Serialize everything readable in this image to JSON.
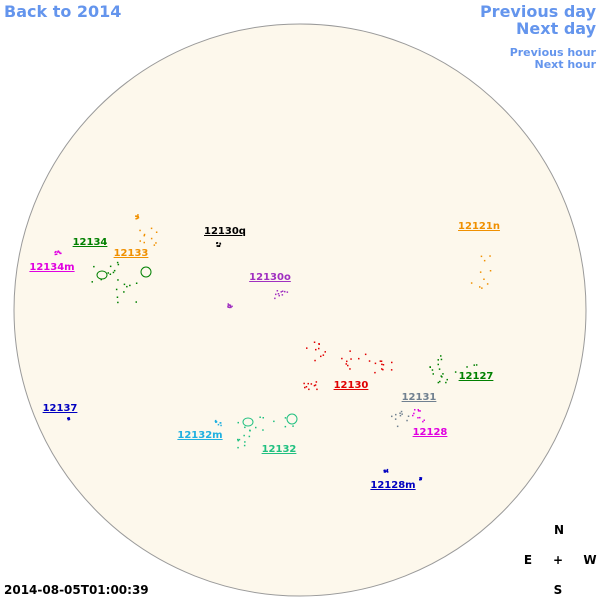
{
  "navigation": {
    "back": "Back to 2014",
    "previous_day": "Previous day",
    "next_day": "Next day",
    "previous_hour": "Previous hour",
    "next_hour": "Next hour"
  },
  "regions": [
    {
      "label": "12134",
      "color": "#008000"
    },
    {
      "label": "12134m",
      "color": "#e000e0"
    },
    {
      "label": "12133",
      "color": "#f09000"
    },
    {
      "label": "12130q",
      "color": "#000000"
    },
    {
      "label": "12130o",
      "color": "#a030c0"
    },
    {
      "label": "12121n",
      "color": "#f09000"
    },
    {
      "label": "12130",
      "color": "#e00000"
    },
    {
      "label": "12127",
      "color": "#008000"
    },
    {
      "label": "12131",
      "color": "#708090"
    },
    {
      "label": "12128",
      "color": "#e000e0"
    },
    {
      "label": "12137",
      "color": "#0000c0"
    },
    {
      "label": "12132m",
      "color": "#20b0e0"
    },
    {
      "label": "12132",
      "color": "#20c080"
    },
    {
      "label": "12128m",
      "color": "#0000c0"
    }
  ],
  "compass": {
    "north": "N",
    "east": "E",
    "center": "+",
    "west": "W",
    "south": "S"
  },
  "timestamp": "2014-08-05T01:00:39"
}
